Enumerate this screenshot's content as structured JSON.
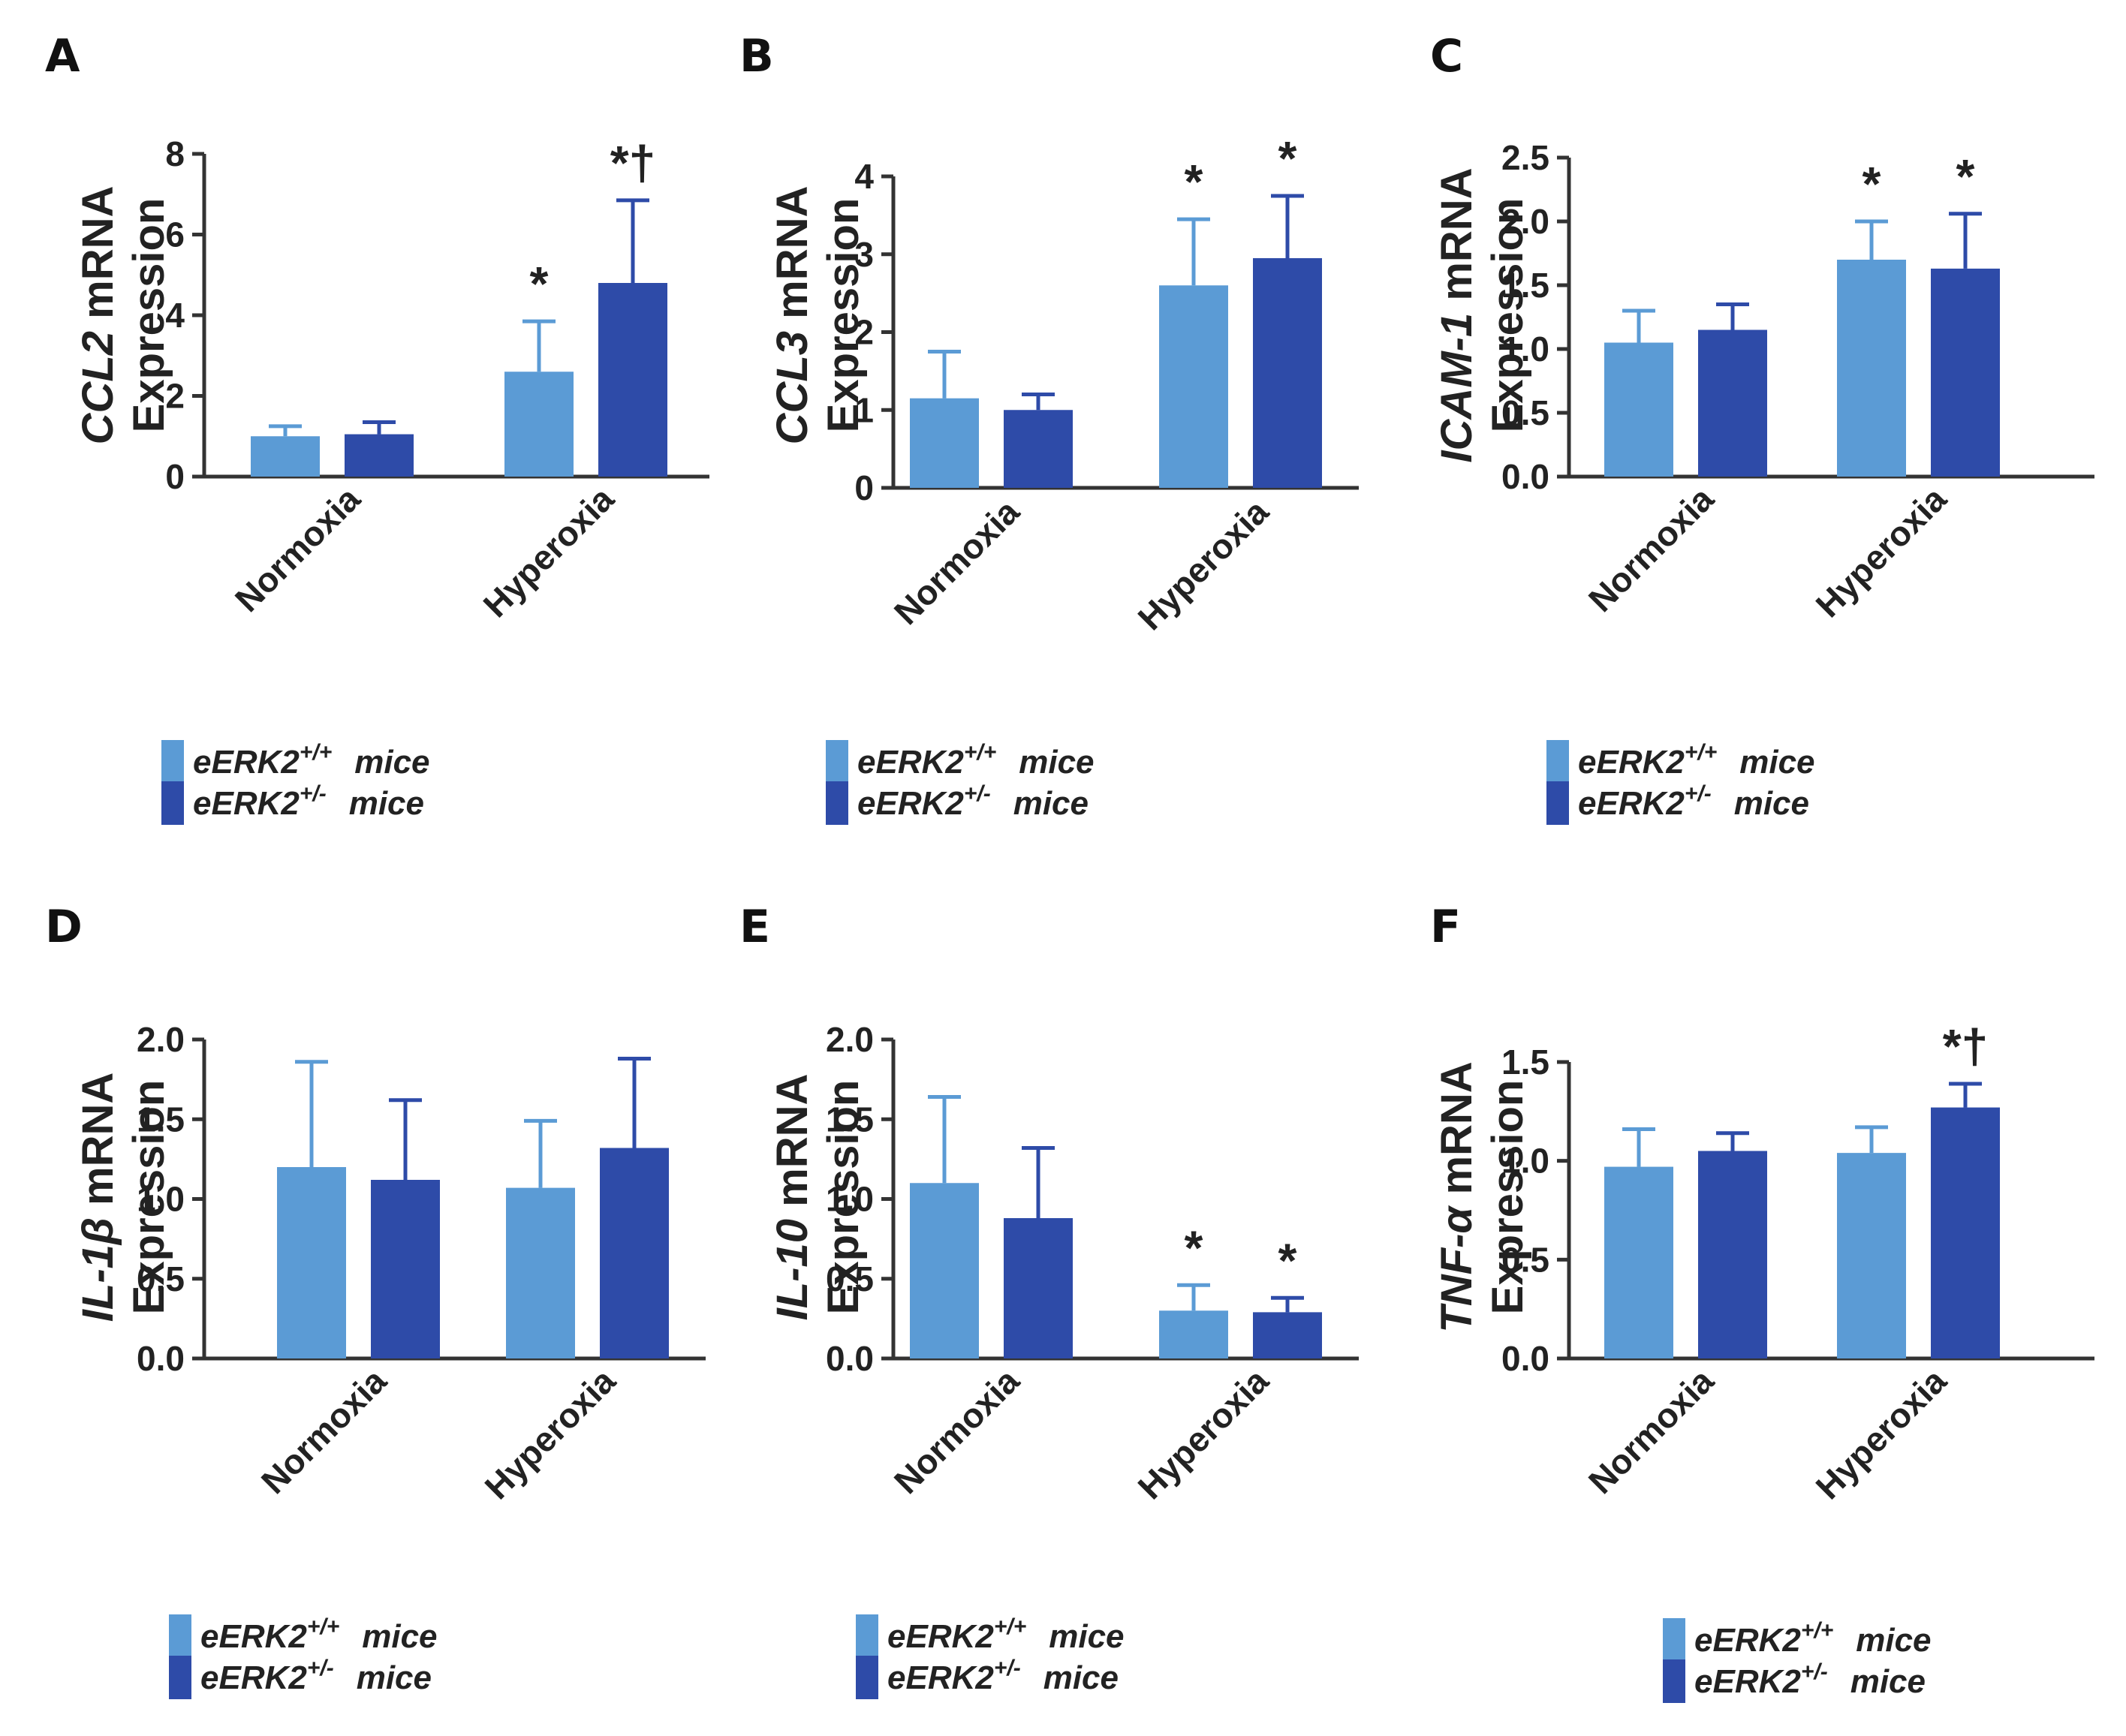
{
  "colors": {
    "wildtype": "#5b9bd5",
    "heterozygous": "#2e4ba8",
    "axis": "#333333"
  },
  "legend": {
    "items": [
      {
        "prefix": "eERK2",
        "sup": "+/+",
        "suffix": "mice"
      },
      {
        "prefix": "eERK2",
        "sup": "+/-",
        "suffix": "mice"
      }
    ]
  },
  "chart_data": [
    {
      "panel": "A",
      "type": "bar",
      "gene": "CCL2",
      "ylabel_rest": " mRNA",
      "ylabel_line2": "Expression",
      "categories": [
        "Normoxia",
        "Hyperoxia"
      ],
      "ylim": [
        0,
        8
      ],
      "yticks": [
        "0",
        "2",
        "4",
        "6",
        "8"
      ],
      "series": [
        {
          "name": "eERK2+/+ mice",
          "values": [
            1.0,
            2.6
          ],
          "errors": [
            0.25,
            1.25
          ]
        },
        {
          "name": "eERK2+/- mice",
          "values": [
            1.05,
            4.8
          ],
          "errors": [
            0.3,
            2.05
          ]
        }
      ],
      "annotations": [
        [
          "",
          "*"
        ],
        [
          "",
          "*†"
        ]
      ]
    },
    {
      "panel": "B",
      "type": "bar",
      "gene": "CCL3",
      "ylabel_rest": " mRNA",
      "ylabel_line2": "Expression",
      "categories": [
        "Normoxia",
        "Hyperoxia"
      ],
      "ylim": [
        0,
        4
      ],
      "yticks": [
        "0",
        "1",
        "2",
        "3",
        "4"
      ],
      "series": [
        {
          "name": "eERK2+/+ mice",
          "values": [
            1.15,
            2.6
          ],
          "errors": [
            0.6,
            0.85
          ]
        },
        {
          "name": "eERK2+/- mice",
          "values": [
            1.0,
            2.95
          ],
          "errors": [
            0.2,
            0.8
          ]
        }
      ],
      "annotations": [
        [
          "",
          "*"
        ],
        [
          "",
          "*"
        ]
      ]
    },
    {
      "panel": "C",
      "type": "bar",
      "gene": "ICAM-1",
      "ylabel_rest": " mRNA",
      "ylabel_line2": "Expression",
      "categories": [
        "Normoxia",
        "Hyperoxia"
      ],
      "ylim": [
        0,
        2.5
      ],
      "yticks": [
        "0.0",
        "0.5",
        "1.0",
        "1.5",
        "2.0",
        "2.5"
      ],
      "series": [
        {
          "name": "eERK2+/+ mice",
          "values": [
            1.05,
            1.7
          ],
          "errors": [
            0.25,
            0.3
          ]
        },
        {
          "name": "eERK2+/- mice",
          "values": [
            1.15,
            1.63
          ],
          "errors": [
            0.2,
            0.43
          ]
        }
      ],
      "annotations": [
        [
          "",
          "*"
        ],
        [
          "",
          "*"
        ]
      ]
    },
    {
      "panel": "D",
      "type": "bar",
      "gene": "IL-1β",
      "ylabel_rest": " mRNA",
      "ylabel_line2": "Expression",
      "categories": [
        "Normoxia",
        "Hyperoxia"
      ],
      "ylim": [
        0,
        2.0
      ],
      "yticks": [
        "0.0",
        "0.5",
        "1.0",
        "1.5",
        "2.0"
      ],
      "series": [
        {
          "name": "eERK2+/+ mice",
          "values": [
            1.2,
            1.07
          ],
          "errors": [
            0.66,
            0.42
          ]
        },
        {
          "name": "eERK2+/- mice",
          "values": [
            1.12,
            1.32
          ],
          "errors": [
            0.5,
            0.56
          ]
        }
      ],
      "annotations": [
        [
          "",
          ""
        ],
        [
          "",
          ""
        ]
      ]
    },
    {
      "panel": "E",
      "type": "bar",
      "gene": "IL-10",
      "ylabel_rest": " mRNA",
      "ylabel_line2": "Expression",
      "categories": [
        "Normoxia",
        "Hyperoxia"
      ],
      "ylim": [
        0,
        2.0
      ],
      "yticks": [
        "0.0",
        "0.5",
        "1.0",
        "1.5",
        "2.0"
      ],
      "series": [
        {
          "name": "eERK2+/+ mice",
          "values": [
            1.1,
            0.3
          ],
          "errors": [
            0.54,
            0.16
          ]
        },
        {
          "name": "eERK2+/- mice",
          "values": [
            0.88,
            0.29
          ],
          "errors": [
            0.44,
            0.09
          ]
        }
      ],
      "annotations": [
        [
          "",
          "*"
        ],
        [
          "",
          "*"
        ]
      ]
    },
    {
      "panel": "F",
      "type": "bar",
      "gene": "TNF-α",
      "ylabel_rest": " mRNA",
      "ylabel_line2": "Expression",
      "categories": [
        "Normoxia",
        "Hyperoxia"
      ],
      "ylim": [
        0,
        1.5
      ],
      "yticks": [
        "0.0",
        "0.5",
        "1.0",
        "1.5"
      ],
      "series": [
        {
          "name": "eERK2+/+ mice",
          "values": [
            0.97,
            1.04
          ],
          "errors": [
            0.19,
            0.13
          ]
        },
        {
          "name": "eERK2+/- mice",
          "values": [
            1.05,
            1.27
          ],
          "errors": [
            0.09,
            0.12
          ]
        }
      ],
      "annotations": [
        [
          "",
          ""
        ],
        [
          "",
          "*†"
        ]
      ]
    }
  ]
}
